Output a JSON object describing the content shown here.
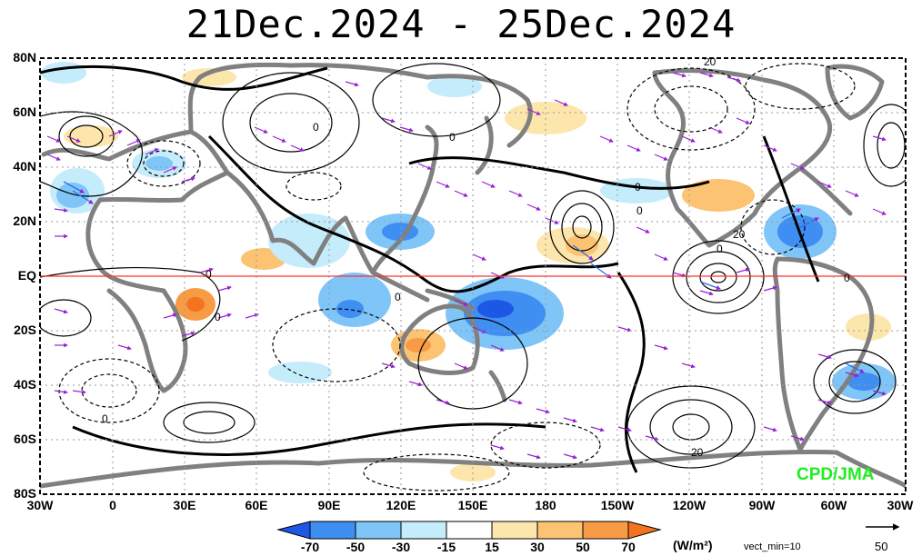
{
  "title": "21Dec.2024 - 25Dec.2024",
  "credit": "CPD/JMA",
  "colors": {
    "land_outline": "#808080",
    "equator": "#ff3030",
    "vectors": "#9a1fd6",
    "contours": "#000000",
    "credit": "#20ee20"
  },
  "y_ticks": [
    "80N",
    "60N",
    "40N",
    "20N",
    "EQ",
    "20S",
    "40S",
    "60S",
    "80S"
  ],
  "x_ticks": [
    "30W",
    "0",
    "30E",
    "60E",
    "90E",
    "120E",
    "150E",
    "180",
    "150W",
    "120W",
    "90W",
    "60W",
    "30W"
  ],
  "colorbar": {
    "labels": [
      "-70",
      "-50",
      "-30",
      "-15",
      "15",
      "30",
      "50",
      "70"
    ],
    "colors": [
      "#1d57e6",
      "#3f8ef2",
      "#7fc5f7",
      "#c5ecfb",
      "#ffffff",
      "#fde6ac",
      "#fbc372",
      "#f79b45",
      "#f47321"
    ],
    "units": "(W/m²)"
  },
  "vector_legend": {
    "min_label": "vect_min=10",
    "ref_value": "50"
  },
  "contour_labels": [
    "0",
    "0",
    "0",
    "0",
    "0",
    "0",
    "0",
    "0",
    "0",
    "20",
    "20",
    "20",
    "0"
  ]
}
